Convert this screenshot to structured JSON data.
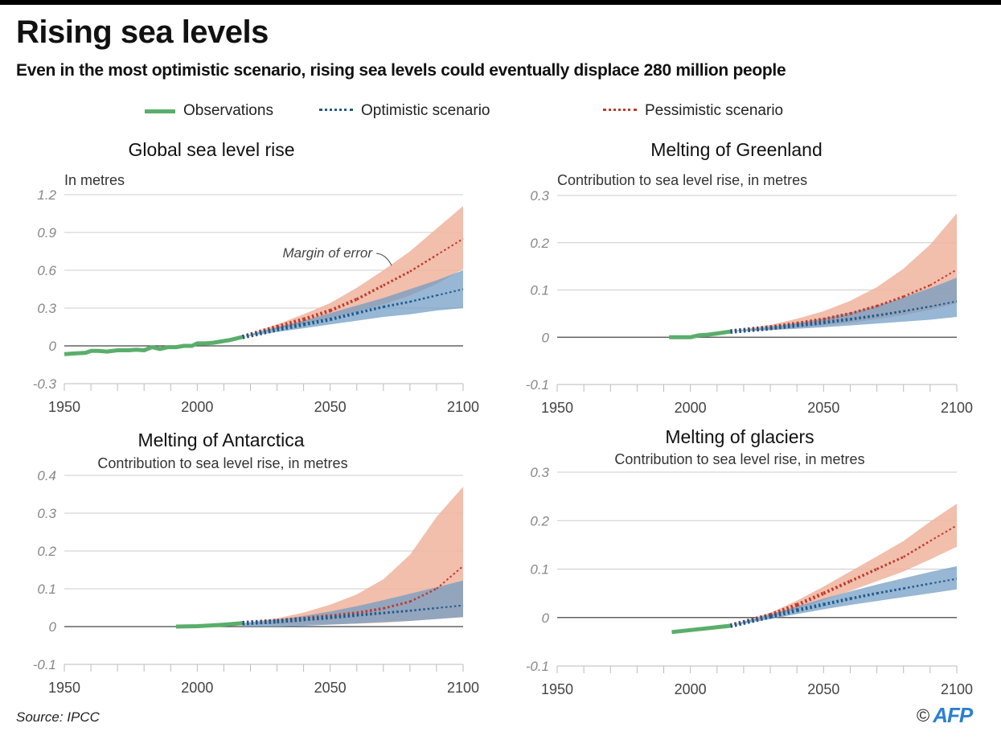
{
  "header": {
    "title": "Rising sea levels",
    "subtitle": "Even in the most optimistic scenario, rising sea levels could eventually displace 280 million people"
  },
  "legend": {
    "observations": "Observations",
    "optimistic": "Optimistic scenario",
    "pessimistic": "Pessimistic scenario"
  },
  "colors": {
    "observations": "#5aae6b",
    "optimistic_line": "#1f5a8a",
    "optimistic_band": "#6f9bc4",
    "pessimistic_line": "#c0392b",
    "pessimistic_band": "#eeb49e",
    "zero_line": "#444444",
    "grid": "#cccccc"
  },
  "footer": {
    "source": "Source: IPCC",
    "copyright": "©",
    "agency": "AFP"
  },
  "chart_data": [
    {
      "type": "line",
      "title": "Global sea level rise",
      "ylabel": "In metres",
      "xlim": [
        1950,
        2100
      ],
      "ylim": [
        -0.3,
        1.2
      ],
      "yticks": [
        1.2,
        0.9,
        0.6,
        0.3,
        0,
        -0.3
      ],
      "ytick_labels": [
        "1.2",
        "0.9",
        "0.6",
        "0.3",
        "0",
        "-0.3"
      ],
      "xticks": [
        1950,
        2000,
        2050,
        2100
      ],
      "grid": true,
      "annotation": "Margin of error",
      "observations": {
        "x": [
          1950,
          1954,
          1958,
          1960,
          1963,
          1966,
          1970,
          1974,
          1977,
          1980,
          1983,
          1986,
          1989,
          1992,
          1995,
          1998,
          2000,
          2003,
          2006,
          2009,
          2012,
          2015,
          2017
        ],
        "y": [
          -0.065,
          -0.06,
          -0.055,
          -0.04,
          -0.04,
          -0.045,
          -0.035,
          -0.035,
          -0.03,
          -0.035,
          -0.01,
          -0.025,
          -0.01,
          -0.01,
          0.0,
          0.0,
          0.02,
          0.02,
          0.025,
          0.035,
          0.045,
          0.06,
          0.07
        ]
      },
      "optimistic": {
        "x": [
          2017,
          2030,
          2040,
          2050,
          2060,
          2070,
          2080,
          2090,
          2100
        ],
        "mid": [
          0.07,
          0.13,
          0.17,
          0.21,
          0.26,
          0.31,
          0.35,
          0.4,
          0.45
        ],
        "low": [
          0.07,
          0.11,
          0.14,
          0.17,
          0.2,
          0.23,
          0.25,
          0.28,
          0.3
        ],
        "high": [
          0.07,
          0.15,
          0.2,
          0.26,
          0.32,
          0.38,
          0.45,
          0.52,
          0.6
        ]
      },
      "pessimistic": {
        "x": [
          2017,
          2030,
          2040,
          2050,
          2060,
          2070,
          2080,
          2090,
          2100
        ],
        "mid": [
          0.07,
          0.15,
          0.21,
          0.28,
          0.37,
          0.48,
          0.59,
          0.72,
          0.85
        ],
        "low": [
          0.07,
          0.13,
          0.17,
          0.22,
          0.27,
          0.33,
          0.4,
          0.49,
          0.61
        ],
        "high": [
          0.07,
          0.17,
          0.25,
          0.34,
          0.46,
          0.6,
          0.75,
          0.93,
          1.11
        ]
      }
    },
    {
      "type": "line",
      "title": "Melting of Greenland",
      "ylabel": "Contribution to sea level rise, in metres",
      "xlim": [
        1950,
        2100
      ],
      "ylim": [
        -0.1,
        0.3
      ],
      "yticks": [
        0.3,
        0.2,
        0.1,
        0,
        -0.1
      ],
      "ytick_labels": [
        "0.3",
        "0.2",
        "0.1",
        "0",
        "-0.1"
      ],
      "xticks": [
        1950,
        2000,
        2050,
        2100
      ],
      "grid": true,
      "observations": {
        "x": [
          1992,
          1995,
          2000,
          2003,
          2006,
          2010,
          2015
        ],
        "y": [
          0.0,
          0.0,
          0.0,
          0.004,
          0.005,
          0.008,
          0.012
        ]
      },
      "optimistic": {
        "x": [
          2015,
          2030,
          2040,
          2050,
          2060,
          2070,
          2080,
          2090,
          2100
        ],
        "mid": [
          0.012,
          0.019,
          0.025,
          0.031,
          0.038,
          0.046,
          0.055,
          0.065,
          0.076
        ],
        "low": [
          0.012,
          0.015,
          0.018,
          0.021,
          0.025,
          0.029,
          0.033,
          0.037,
          0.043
        ],
        "high": [
          0.012,
          0.022,
          0.03,
          0.04,
          0.052,
          0.067,
          0.084,
          0.104,
          0.126
        ]
      },
      "pessimistic": {
        "x": [
          2015,
          2030,
          2040,
          2050,
          2060,
          2070,
          2080,
          2090,
          2100
        ],
        "mid": [
          0.012,
          0.021,
          0.029,
          0.038,
          0.05,
          0.066,
          0.086,
          0.11,
          0.143
        ],
        "low": [
          0.012,
          0.016,
          0.02,
          0.025,
          0.031,
          0.038,
          0.047,
          0.058,
          0.072
        ],
        "high": [
          0.012,
          0.026,
          0.039,
          0.055,
          0.077,
          0.106,
          0.145,
          0.196,
          0.262
        ]
      }
    },
    {
      "type": "line",
      "title": "Melting of Antarctica",
      "ylabel": "Contribution to sea level rise, in metres",
      "xlim": [
        1950,
        2100
      ],
      "ylim": [
        -0.1,
        0.4
      ],
      "yticks": [
        0.4,
        0.3,
        0.2,
        0.1,
        0,
        -0.1
      ],
      "ytick_labels": [
        "0.4",
        "0.3",
        "0.2",
        "0.1",
        "0",
        "-0.1"
      ],
      "xticks": [
        1950,
        2000,
        2050,
        2100
      ],
      "grid": true,
      "observations": {
        "x": [
          1992,
          2000,
          2005,
          2010,
          2017
        ],
        "y": [
          0.0,
          0.001,
          0.003,
          0.005,
          0.009
        ]
      },
      "optimistic": {
        "x": [
          2017,
          2030,
          2040,
          2050,
          2060,
          2070,
          2080,
          2090,
          2100
        ],
        "mid": [
          0.009,
          0.014,
          0.019,
          0.024,
          0.03,
          0.036,
          0.042,
          0.049,
          0.056
        ],
        "low": [
          0.0,
          0.0,
          0.002,
          0.005,
          0.008,
          0.012,
          0.015,
          0.02,
          0.025
        ],
        "high": [
          0.009,
          0.018,
          0.028,
          0.04,
          0.054,
          0.07,
          0.087,
          0.104,
          0.122
        ]
      },
      "pessimistic": {
        "x": [
          2017,
          2030,
          2040,
          2050,
          2060,
          2070,
          2080,
          2090,
          2100
        ],
        "mid": [
          0.009,
          0.015,
          0.021,
          0.028,
          0.036,
          0.048,
          0.066,
          0.1,
          0.16
        ],
        "low": [
          0.009,
          0.005,
          0.005,
          0.006,
          0.008,
          0.01,
          0.015,
          0.02,
          0.025
        ],
        "high": [
          0.009,
          0.022,
          0.037,
          0.058,
          0.085,
          0.125,
          0.19,
          0.29,
          0.37
        ]
      }
    },
    {
      "type": "line",
      "title": "Melting of glaciers",
      "ylabel": "Contribution to sea level rise, in metres",
      "xlim": [
        1950,
        2100
      ],
      "ylim": [
        -0.1,
        0.3
      ],
      "yticks": [
        0.3,
        0.2,
        0.1,
        0,
        -0.1
      ],
      "ytick_labels": [
        "0.3",
        "0.2",
        "0.1",
        "0",
        "-0.1"
      ],
      "xticks": [
        1950,
        2000,
        2050,
        2100
      ],
      "grid": true,
      "observations": {
        "x": [
          1993,
          2015
        ],
        "y": [
          -0.03,
          -0.017
        ]
      },
      "optimistic": {
        "x": [
          2015,
          2030,
          2040,
          2050,
          2060,
          2070,
          2080,
          2090,
          2100
        ],
        "mid": [
          -0.017,
          0.002,
          0.015,
          0.027,
          0.039,
          0.05,
          0.06,
          0.07,
          0.08
        ],
        "low": [
          -0.017,
          -0.003,
          0.007,
          0.017,
          0.026,
          0.034,
          0.042,
          0.05,
          0.058
        ],
        "high": [
          -0.017,
          0.007,
          0.023,
          0.039,
          0.054,
          0.068,
          0.081,
          0.094,
          0.106
        ]
      },
      "pessimistic": {
        "x": [
          2015,
          2030,
          2040,
          2050,
          2060,
          2070,
          2080,
          2090,
          2100
        ],
        "mid": [
          -0.017,
          0.005,
          0.026,
          0.05,
          0.075,
          0.1,
          0.125,
          0.158,
          0.19
        ],
        "low": [
          -0.017,
          0.0,
          0.017,
          0.036,
          0.055,
          0.075,
          0.095,
          0.12,
          0.146
        ],
        "high": [
          -0.017,
          0.01,
          0.035,
          0.064,
          0.095,
          0.126,
          0.158,
          0.198,
          0.235
        ]
      }
    }
  ]
}
